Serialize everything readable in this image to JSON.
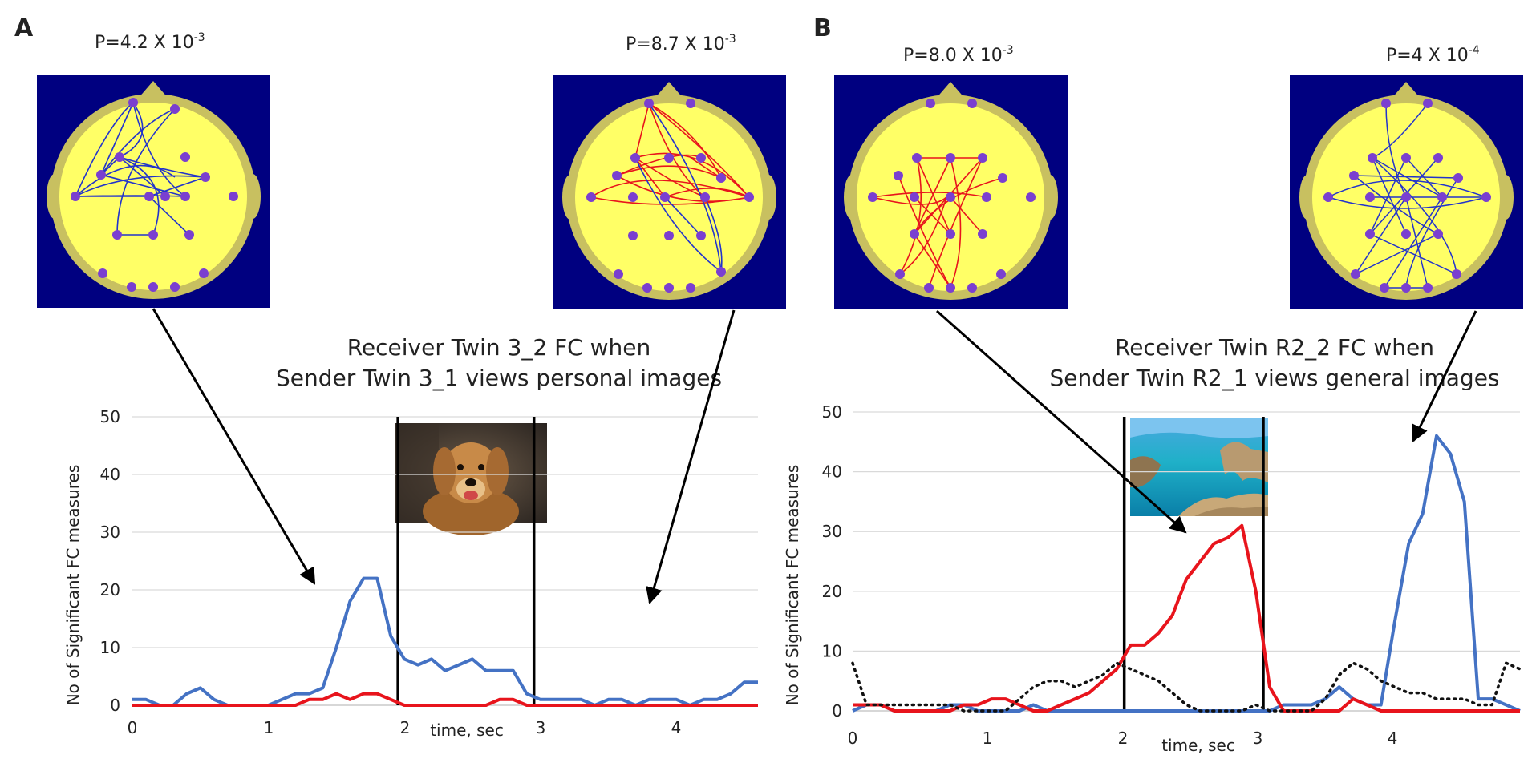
{
  "panel_a": {
    "label": "A",
    "map_left": {
      "p_base": "P=4.2 X 10",
      "p_exp": "-3"
    },
    "map_right": {
      "p_base": "P=8.7 X 10",
      "p_exp": "-3"
    },
    "title_line1": "Receiver Twin 3_2 FC when",
    "title_line2": "Sender Twin 3_1 views personal images",
    "ylabel": "No of Significant FC measures",
    "xlabel": "time, sec",
    "image_desc": "dog-photo"
  },
  "panel_b": {
    "label": "B",
    "map_left": {
      "p_base": "P=8.0 X 10",
      "p_exp": "-3"
    },
    "map_right": {
      "p_base": "P=4 X 10",
      "p_exp": "-4"
    },
    "title_line1": "Receiver Twin R2_2 FC when",
    "title_line2": "Sender Twin R2_1 views general images",
    "ylabel": "No of Significant FC measures",
    "xlabel": "time, sec",
    "image_desc": "sea-coast-photo"
  },
  "colors": {
    "blue": "#4472c4",
    "red": "#e8141c",
    "black": "#111111",
    "map_bg": "#000080",
    "head": "#ffff66",
    "rim": "#c8c060",
    "node": "#7a3fd0"
  },
  "chart_data": [
    {
      "type": "line",
      "title": "Receiver Twin 3_2 FC when Sender Twin 3_1 views personal images",
      "xlabel": "time, sec",
      "ylabel": "No of Significant FC measures",
      "xlim": [
        0,
        4.6
      ],
      "ylim": [
        0,
        50
      ],
      "yticks": [
        0,
        10,
        20,
        30,
        40,
        50
      ],
      "xticks": [
        0,
        1,
        2,
        3,
        4
      ],
      "x": [
        0,
        0.1,
        0.2,
        0.3,
        0.4,
        0.5,
        0.6,
        0.7,
        0.8,
        0.9,
        1.0,
        1.1,
        1.2,
        1.3,
        1.4,
        1.5,
        1.6,
        1.7,
        1.8,
        1.9,
        2.0,
        2.1,
        2.2,
        2.3,
        2.4,
        2.5,
        2.6,
        2.7,
        2.8,
        2.9,
        3.0,
        3.1,
        3.2,
        3.3,
        3.4,
        3.5,
        3.6,
        3.7,
        3.8,
        3.9,
        4.0,
        4.1,
        4.2,
        4.3,
        4.4,
        4.5,
        4.6
      ],
      "series": [
        {
          "name": "blue",
          "color": "#4472c4",
          "values": [
            1,
            1,
            0,
            0,
            2,
            3,
            1,
            0,
            0,
            0,
            0,
            1,
            2,
            2,
            3,
            10,
            18,
            22,
            22,
            12,
            8,
            7,
            8,
            6,
            7,
            8,
            6,
            6,
            6,
            2,
            1,
            1,
            1,
            1,
            0,
            1,
            1,
            0,
            1,
            1,
            1,
            0,
            1,
            1,
            2,
            4,
            4
          ]
        },
        {
          "name": "red",
          "color": "#e8141c",
          "values": [
            0,
            0,
            0,
            0,
            0,
            0,
            0,
            0,
            0,
            0,
            0,
            0,
            0,
            1,
            1,
            2,
            1,
            2,
            2,
            1,
            0,
            0,
            0,
            0,
            0,
            0,
            0,
            1,
            1,
            0,
            0,
            0,
            0,
            0,
            0,
            0,
            0,
            0,
            0,
            0,
            0,
            0,
            0,
            0,
            0,
            0,
            0
          ]
        }
      ],
      "stimulus_markers": [
        2.0,
        3.0
      ]
    },
    {
      "type": "line",
      "title": "Receiver Twin R2_2 FC when Sender Twin R2_1 views general images",
      "xlabel": "time, sec",
      "ylabel": "No of Significant FC measures",
      "xlim": [
        0,
        4.8
      ],
      "ylim": [
        0,
        50
      ],
      "yticks": [
        0,
        10,
        20,
        30,
        40,
        50
      ],
      "xticks": [
        0,
        1,
        2,
        3,
        4
      ],
      "x": [
        0,
        0.1,
        0.2,
        0.3,
        0.4,
        0.5,
        0.6,
        0.7,
        0.8,
        0.9,
        1.0,
        1.1,
        1.2,
        1.3,
        1.4,
        1.5,
        1.6,
        1.7,
        1.8,
        1.9,
        2.0,
        2.1,
        2.2,
        2.3,
        2.4,
        2.5,
        2.6,
        2.7,
        2.8,
        2.9,
        3.0,
        3.1,
        3.2,
        3.3,
        3.4,
        3.5,
        3.6,
        3.7,
        3.8,
        3.9,
        4.0,
        4.1,
        4.2,
        4.3,
        4.4,
        4.5,
        4.6,
        4.7,
        4.8
      ],
      "series": [
        {
          "name": "blue",
          "color": "#4472c4",
          "values": [
            0,
            1,
            1,
            0,
            0,
            0,
            0,
            1,
            1,
            0,
            0,
            0,
            0,
            1,
            0,
            0,
            0,
            0,
            0,
            0,
            0,
            0,
            0,
            0,
            0,
            0,
            0,
            0,
            0,
            0,
            0,
            1,
            1,
            1,
            2,
            4,
            2,
            1,
            1,
            15,
            28,
            33,
            46,
            43,
            35,
            2,
            2,
            1,
            0
          ]
        },
        {
          "name": "red",
          "color": "#e8141c",
          "values": [
            1,
            1,
            1,
            0,
            0,
            0,
            0,
            0,
            1,
            1,
            2,
            2,
            1,
            0,
            0,
            1,
            2,
            3,
            5,
            7,
            11,
            11,
            13,
            16,
            22,
            25,
            28,
            29,
            31,
            20,
            4,
            0,
            0,
            0,
            0,
            0,
            2,
            1,
            0,
            0,
            0,
            0,
            0,
            0,
            0,
            0,
            0,
            0,
            0
          ]
        },
        {
          "name": "dotted",
          "color": "#111111",
          "values": [
            8,
            1,
            1,
            1,
            1,
            1,
            1,
            1,
            0,
            0,
            0,
            0,
            2,
            4,
            5,
            5,
            4,
            5,
            6,
            8,
            7,
            6,
            5,
            3,
            1,
            0,
            0,
            0,
            0,
            1,
            0,
            0,
            0,
            0,
            2,
            6,
            8,
            7,
            5,
            4,
            3,
            3,
            2,
            2,
            2,
            1,
            1,
            8,
            7
          ]
        }
      ],
      "stimulus_markers": [
        2.0,
        3.0
      ]
    }
  ]
}
